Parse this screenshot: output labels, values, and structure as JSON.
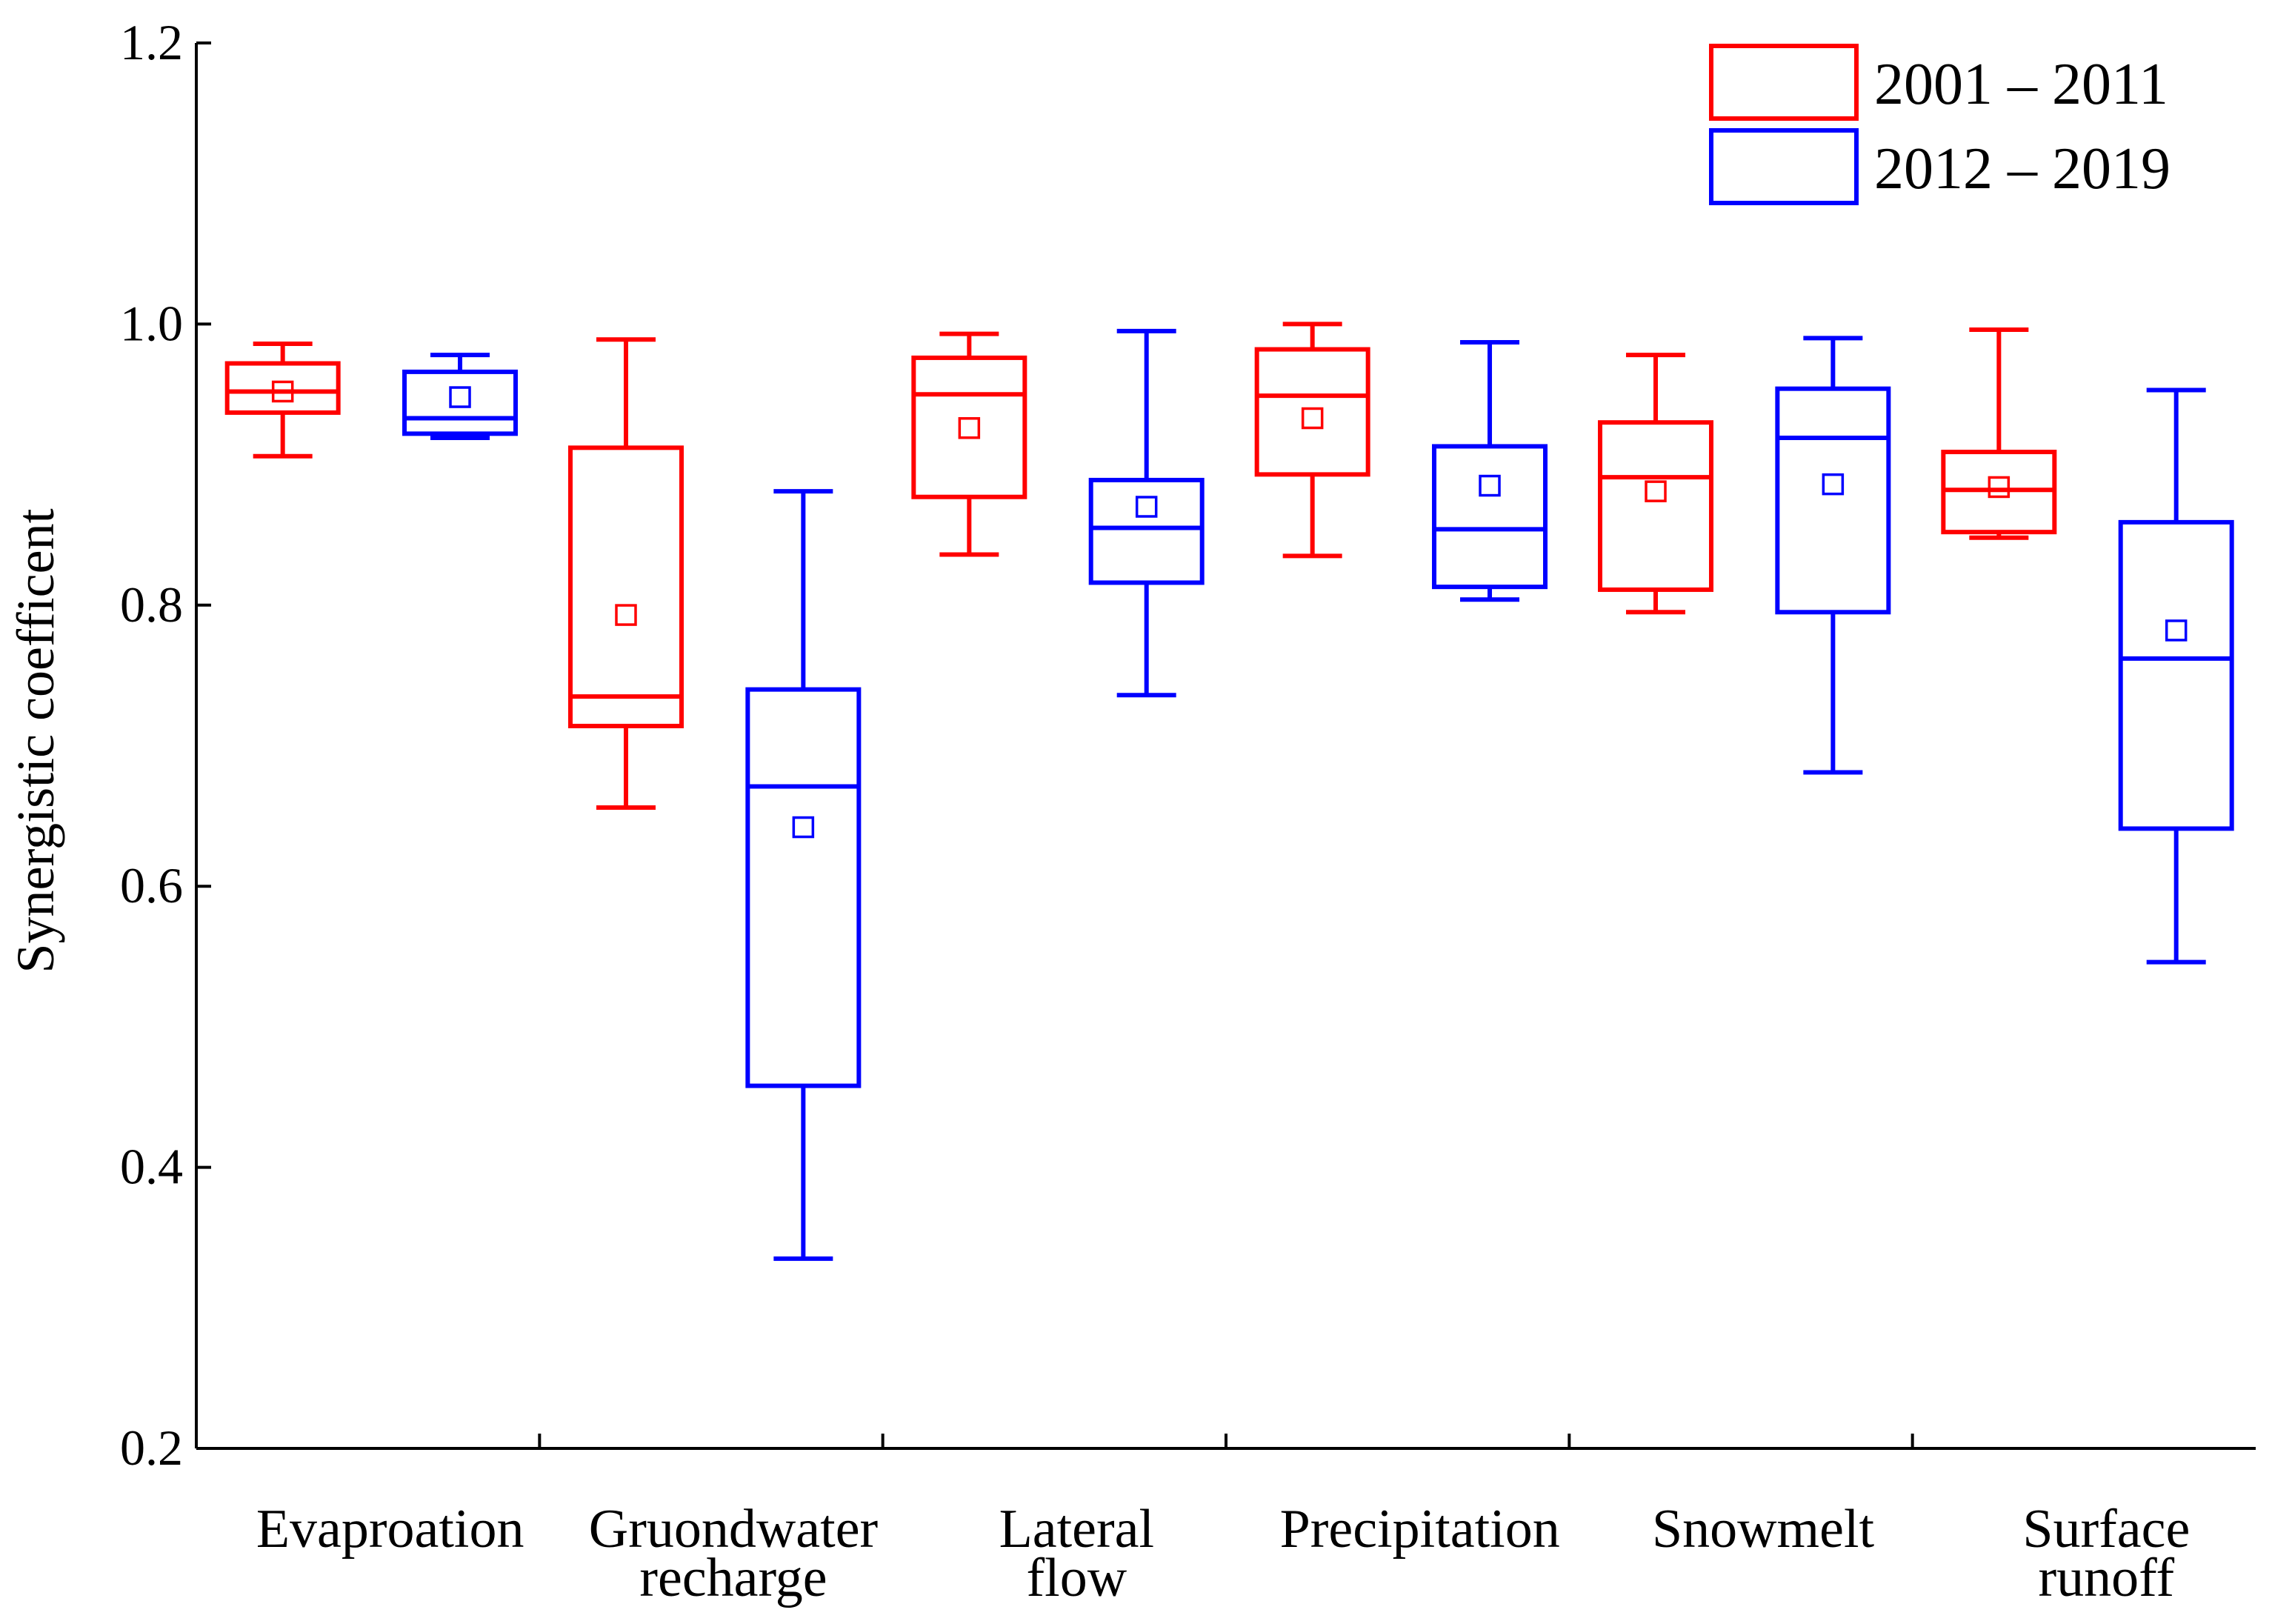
{
  "chart_data": {
    "type": "box",
    "ylabel": "Synergistic coefficent",
    "xlabel": "",
    "ylim": [
      0.2,
      1.2
    ],
    "yticks": [
      0.2,
      0.4,
      0.6,
      0.8,
      1.0,
      1.2
    ],
    "ytick_labels": [
      "0.2",
      "0.4",
      "0.6",
      "0.8",
      "1.0",
      "1.2"
    ],
    "grid": false,
    "legend_position": "top-right",
    "categories": [
      {
        "lines": [
          "Evaproation"
        ]
      },
      {
        "lines": [
          "Gruondwater",
          "recharge"
        ]
      },
      {
        "lines": [
          "Lateral",
          "flow"
        ]
      },
      {
        "lines": [
          "Precipitation"
        ]
      },
      {
        "lines": [
          "Snowmelt"
        ]
      },
      {
        "lines": [
          "Surface",
          "runoff"
        ]
      }
    ],
    "series": [
      {
        "name": "2001 – 2011",
        "color": "#ff0000",
        "boxes": [
          {
            "min": 0.906,
            "q1": 0.937,
            "median": 0.952,
            "q3": 0.972,
            "max": 0.986,
            "mean": 0.952
          },
          {
            "min": 0.656,
            "q1": 0.714,
            "median": 0.735,
            "q3": 0.912,
            "max": 0.989,
            "mean": 0.793
          },
          {
            "min": 0.836,
            "q1": 0.877,
            "median": 0.95,
            "q3": 0.976,
            "max": 0.993,
            "mean": 0.926
          },
          {
            "min": 0.835,
            "q1": 0.893,
            "median": 0.949,
            "q3": 0.982,
            "max": 1.0,
            "mean": 0.933
          },
          {
            "min": 0.795,
            "q1": 0.811,
            "median": 0.891,
            "q3": 0.93,
            "max": 0.978,
            "mean": 0.881
          },
          {
            "min": 0.848,
            "q1": 0.852,
            "median": 0.882,
            "q3": 0.909,
            "max": 0.996,
            "mean": 0.884
          }
        ]
      },
      {
        "name": "2012 – 2019",
        "color": "#0000ff",
        "boxes": [
          {
            "min": 0.919,
            "q1": 0.922,
            "median": 0.933,
            "q3": 0.966,
            "max": 0.978,
            "mean": 0.948
          },
          {
            "min": 0.335,
            "q1": 0.458,
            "median": 0.671,
            "q3": 0.74,
            "max": 0.881,
            "mean": 0.642
          },
          {
            "min": 0.736,
            "q1": 0.816,
            "median": 0.855,
            "q3": 0.889,
            "max": 0.995,
            "mean": 0.87
          },
          {
            "min": 0.804,
            "q1": 0.813,
            "median": 0.854,
            "q3": 0.913,
            "max": 0.987,
            "mean": 0.885
          },
          {
            "min": 0.681,
            "q1": 0.795,
            "median": 0.919,
            "q3": 0.954,
            "max": 0.99,
            "mean": 0.886
          },
          {
            "min": 0.546,
            "q1": 0.641,
            "median": 0.762,
            "q3": 0.859,
            "max": 0.953,
            "mean": 0.782
          }
        ]
      }
    ]
  }
}
